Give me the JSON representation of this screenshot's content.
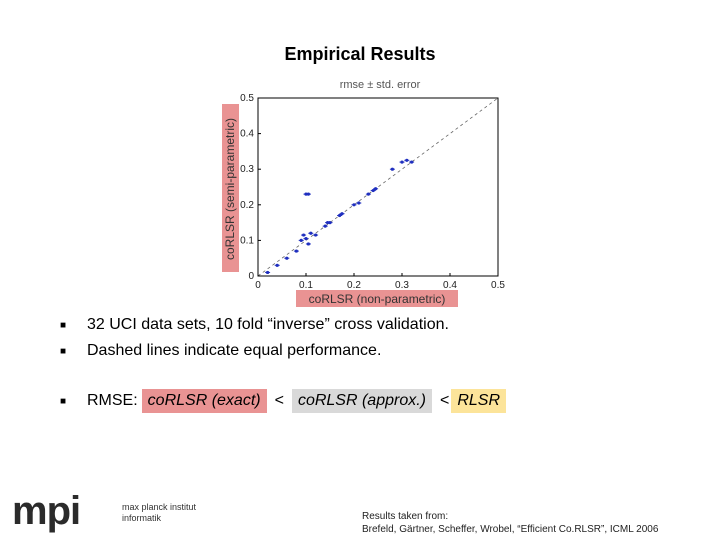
{
  "slide": {
    "title": "Empirical Results"
  },
  "chart_data": {
    "type": "scatter",
    "title": "rmse ± std. error",
    "xlabel": "coRLSR (non-parametric)",
    "ylabel": "coRLSR (semi-parametric)",
    "xlim": [
      0,
      0.5
    ],
    "ylim": [
      0,
      0.5
    ],
    "xticks": [
      "0",
      "0.1",
      "0.2",
      "0.3",
      "0.4",
      "0.5"
    ],
    "yticks": [
      "0",
      "0.1",
      "0.2",
      "0.3",
      "0.4",
      "0.5"
    ],
    "grid": false,
    "reference_line": "y = x (dashed)",
    "label_highlight_color": "#e99393",
    "point_color": "#1f2fbf",
    "points": [
      {
        "x": 0.02,
        "y": 0.01
      },
      {
        "x": 0.04,
        "y": 0.03
      },
      {
        "x": 0.06,
        "y": 0.05
      },
      {
        "x": 0.08,
        "y": 0.07
      },
      {
        "x": 0.09,
        "y": 0.1
      },
      {
        "x": 0.095,
        "y": 0.115
      },
      {
        "x": 0.1,
        "y": 0.105
      },
      {
        "x": 0.105,
        "y": 0.09
      },
      {
        "x": 0.11,
        "y": 0.12
      },
      {
        "x": 0.12,
        "y": 0.115
      },
      {
        "x": 0.1,
        "y": 0.23
      },
      {
        "x": 0.105,
        "y": 0.23
      },
      {
        "x": 0.14,
        "y": 0.14
      },
      {
        "x": 0.145,
        "y": 0.15
      },
      {
        "x": 0.15,
        "y": 0.15
      },
      {
        "x": 0.17,
        "y": 0.17
      },
      {
        "x": 0.175,
        "y": 0.175
      },
      {
        "x": 0.2,
        "y": 0.2
      },
      {
        "x": 0.21,
        "y": 0.205
      },
      {
        "x": 0.23,
        "y": 0.23
      },
      {
        "x": 0.24,
        "y": 0.24
      },
      {
        "x": 0.245,
        "y": 0.245
      },
      {
        "x": 0.28,
        "y": 0.3
      },
      {
        "x": 0.3,
        "y": 0.32
      },
      {
        "x": 0.31,
        "y": 0.325
      },
      {
        "x": 0.32,
        "y": 0.32
      }
    ]
  },
  "bullets": [
    "32 UCI data sets, 10 fold “inverse” cross validation.",
    "Dashed lines indicate equal performance."
  ],
  "rmse": {
    "label": "RMSE:",
    "exact": "coRLSR (exact)",
    "lt1": "<",
    "approx": "coRLSR (approx.)",
    "lt2": "<",
    "rlsr": "RLSR"
  },
  "logo": {
    "letters": "mpi",
    "line1": "max planck institut",
    "line2": "informatik"
  },
  "footer": {
    "line1": "Results taken from:",
    "line2": "Brefeld, Gärtner, Scheffer, Wrobel, “Efficient Co.RLSR”, ICML 2006"
  }
}
